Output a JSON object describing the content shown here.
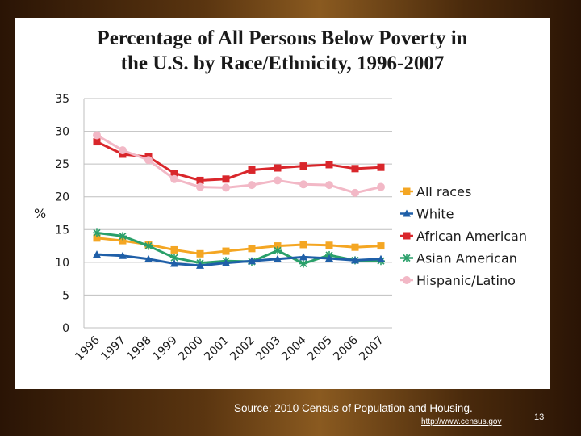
{
  "slide": {
    "title_line1": "Percentage of All Persons Below Poverty in",
    "title_line2": "the U.S. by Race/Ethnicity, 1996-2007",
    "source": "Source: 2010 Census of Population and Housing.",
    "url": "http://www.census.gov",
    "page_number": "13"
  },
  "chart_data": {
    "type": "line",
    "title": "Percentage of All Persons Below Poverty in the U.S. by Race/Ethnicity, 1996-2007",
    "xlabel": "",
    "ylabel": "%",
    "x": [
      "1996",
      "1997",
      "1998",
      "1999",
      "2000",
      "2001",
      "2002",
      "2003",
      "2004",
      "2005",
      "2006",
      "2007"
    ],
    "ylim": [
      0,
      35
    ],
    "yticks": [
      0,
      5,
      10,
      15,
      20,
      25,
      30,
      35
    ],
    "grid": "horizontal",
    "legend": "right",
    "series": [
      {
        "name": "All races",
        "color": "#f4a623",
        "marker": "square",
        "values": [
          13.7,
          13.3,
          12.7,
          11.9,
          11.3,
          11.7,
          12.1,
          12.5,
          12.7,
          12.6,
          12.3,
          12.5
        ]
      },
      {
        "name": "White",
        "color": "#1f5fa8",
        "marker": "triangle",
        "values": [
          11.2,
          11.0,
          10.5,
          9.8,
          9.5,
          9.9,
          10.2,
          10.5,
          10.8,
          10.6,
          10.3,
          10.5
        ]
      },
      {
        "name": "African American",
        "color": "#d9262b",
        "marker": "square",
        "values": [
          28.4,
          26.5,
          26.1,
          23.6,
          22.5,
          22.7,
          24.1,
          24.4,
          24.7,
          24.9,
          24.3,
          24.5
        ]
      },
      {
        "name": "Asian American",
        "color": "#2aa06a",
        "marker": "star",
        "values": [
          14.5,
          14.0,
          12.5,
          10.7,
          9.9,
          10.2,
          10.1,
          11.8,
          9.8,
          11.1,
          10.3,
          10.2
        ]
      },
      {
        "name": "Hispanic/Latino",
        "color": "#f2b8c6",
        "marker": "circle",
        "values": [
          29.4,
          27.1,
          25.6,
          22.7,
          21.5,
          21.4,
          21.8,
          22.5,
          21.9,
          21.8,
          20.6,
          21.5
        ]
      }
    ]
  }
}
